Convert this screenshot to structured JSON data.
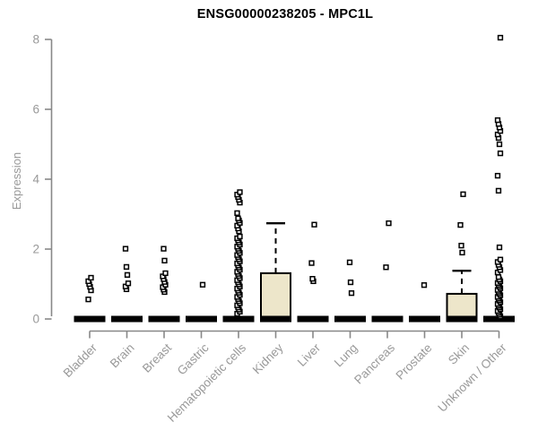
{
  "title": "ENSG00000238205 - MPC1L",
  "chart_data": {
    "type": "boxplot",
    "title": "ENSG00000238205 - MPC1L",
    "ylabel": "Expression",
    "ylim": [
      0,
      8.2
    ],
    "yticks": [
      0,
      2,
      4,
      6,
      8
    ],
    "grid": "off",
    "axis_color": "#888888",
    "label_color": "#999999",
    "box_fill": "#EDE6CA",
    "point_color": "#000000",
    "categories": [
      "Bladder",
      "Brain",
      "Breast",
      "Gastric",
      "Hematopoietic cells",
      "Kidney",
      "Liver",
      "Lung",
      "Pancreas",
      "Prostate",
      "Skin",
      "Unknown / Other"
    ],
    "series": [
      {
        "name": "Bladder",
        "q1": 0,
        "median": 0,
        "q3": 0,
        "whisker_low": 0,
        "whisker_high": 0,
        "outliers": [
          0.56,
          0.82,
          0.92,
          1.0,
          1.08,
          1.18
        ]
      },
      {
        "name": "Brain",
        "q1": 0,
        "median": 0,
        "q3": 0,
        "whisker_low": 0,
        "whisker_high": 0,
        "outliers": [
          0.85,
          0.93,
          1.02,
          1.26,
          1.49,
          2.01
        ]
      },
      {
        "name": "Breast",
        "q1": 0,
        "median": 0,
        "q3": 0,
        "whisker_low": 0,
        "whisker_high": 0,
        "outliers": [
          0.77,
          0.84,
          0.91,
          0.98,
          1.06,
          1.14,
          1.22,
          1.31,
          1.67,
          2.01
        ]
      },
      {
        "name": "Gastric",
        "q1": 0,
        "median": 0,
        "q3": 0,
        "whisker_low": 0,
        "whisker_high": 0,
        "outliers": [
          0.98
        ]
      },
      {
        "name": "Hematopoietic cells",
        "q1": 0,
        "median": 0,
        "q3": 0,
        "whisker_low": 0,
        "whisker_high": 0,
        "outliers": [
          0.15,
          0.21,
          0.27,
          0.33,
          0.39,
          0.45,
          0.51,
          0.57,
          0.63,
          0.69,
          0.75,
          0.81,
          0.87,
          0.93,
          0.99,
          1.05,
          1.11,
          1.17,
          1.23,
          1.29,
          1.35,
          1.41,
          1.47,
          1.53,
          1.59,
          1.65,
          1.71,
          1.77,
          1.83,
          1.89,
          1.95,
          2.01,
          2.07,
          2.13,
          2.19,
          2.25,
          2.31,
          2.36,
          2.51,
          2.59,
          2.67,
          2.75,
          2.82,
          2.88,
          3.03,
          3.33,
          3.41,
          3.49,
          3.56,
          3.63
        ]
      },
      {
        "name": "Kidney",
        "q1": 0,
        "median": 0,
        "q3": 1.31,
        "whisker_low": 0,
        "whisker_high": 2.74,
        "outliers": []
      },
      {
        "name": "Liver",
        "q1": 0,
        "median": 0,
        "q3": 0,
        "whisker_low": 0,
        "whisker_high": 0,
        "outliers": [
          1.08,
          1.15,
          1.6,
          2.7
        ]
      },
      {
        "name": "Lung",
        "q1": 0,
        "median": 0,
        "q3": 0,
        "whisker_low": 0,
        "whisker_high": 0,
        "outliers": [
          0.74,
          1.05,
          1.62
        ]
      },
      {
        "name": "Pancreas",
        "q1": 0,
        "median": 0,
        "q3": 0,
        "whisker_low": 0,
        "whisker_high": 0,
        "outliers": [
          1.48,
          2.74
        ]
      },
      {
        "name": "Prostate",
        "q1": 0,
        "median": 0,
        "q3": 0,
        "whisker_low": 0,
        "whisker_high": 0,
        "outliers": [
          0.97
        ]
      },
      {
        "name": "Skin",
        "q1": 0,
        "median": 0,
        "q3": 0.72,
        "whisker_low": 0,
        "whisker_high": 1.38,
        "outliers": [
          1.9,
          2.1,
          2.69,
          3.57
        ]
      },
      {
        "name": "Unknown / Other",
        "q1": 0,
        "median": 0,
        "q3": 0,
        "whisker_low": 0,
        "whisker_high": 0,
        "outliers": [
          0.08,
          0.13,
          0.18,
          0.23,
          0.28,
          0.33,
          0.38,
          0.43,
          0.48,
          0.53,
          0.58,
          0.63,
          0.68,
          0.73,
          0.78,
          0.83,
          0.88,
          0.93,
          0.98,
          1.03,
          1.08,
          1.13,
          1.2,
          1.33,
          1.4,
          1.48,
          1.55,
          1.63,
          1.7,
          2.05,
          3.67,
          4.1,
          4.74,
          5.0,
          5.18,
          5.28,
          5.38,
          5.48,
          5.58,
          5.69,
          8.05
        ]
      }
    ]
  }
}
